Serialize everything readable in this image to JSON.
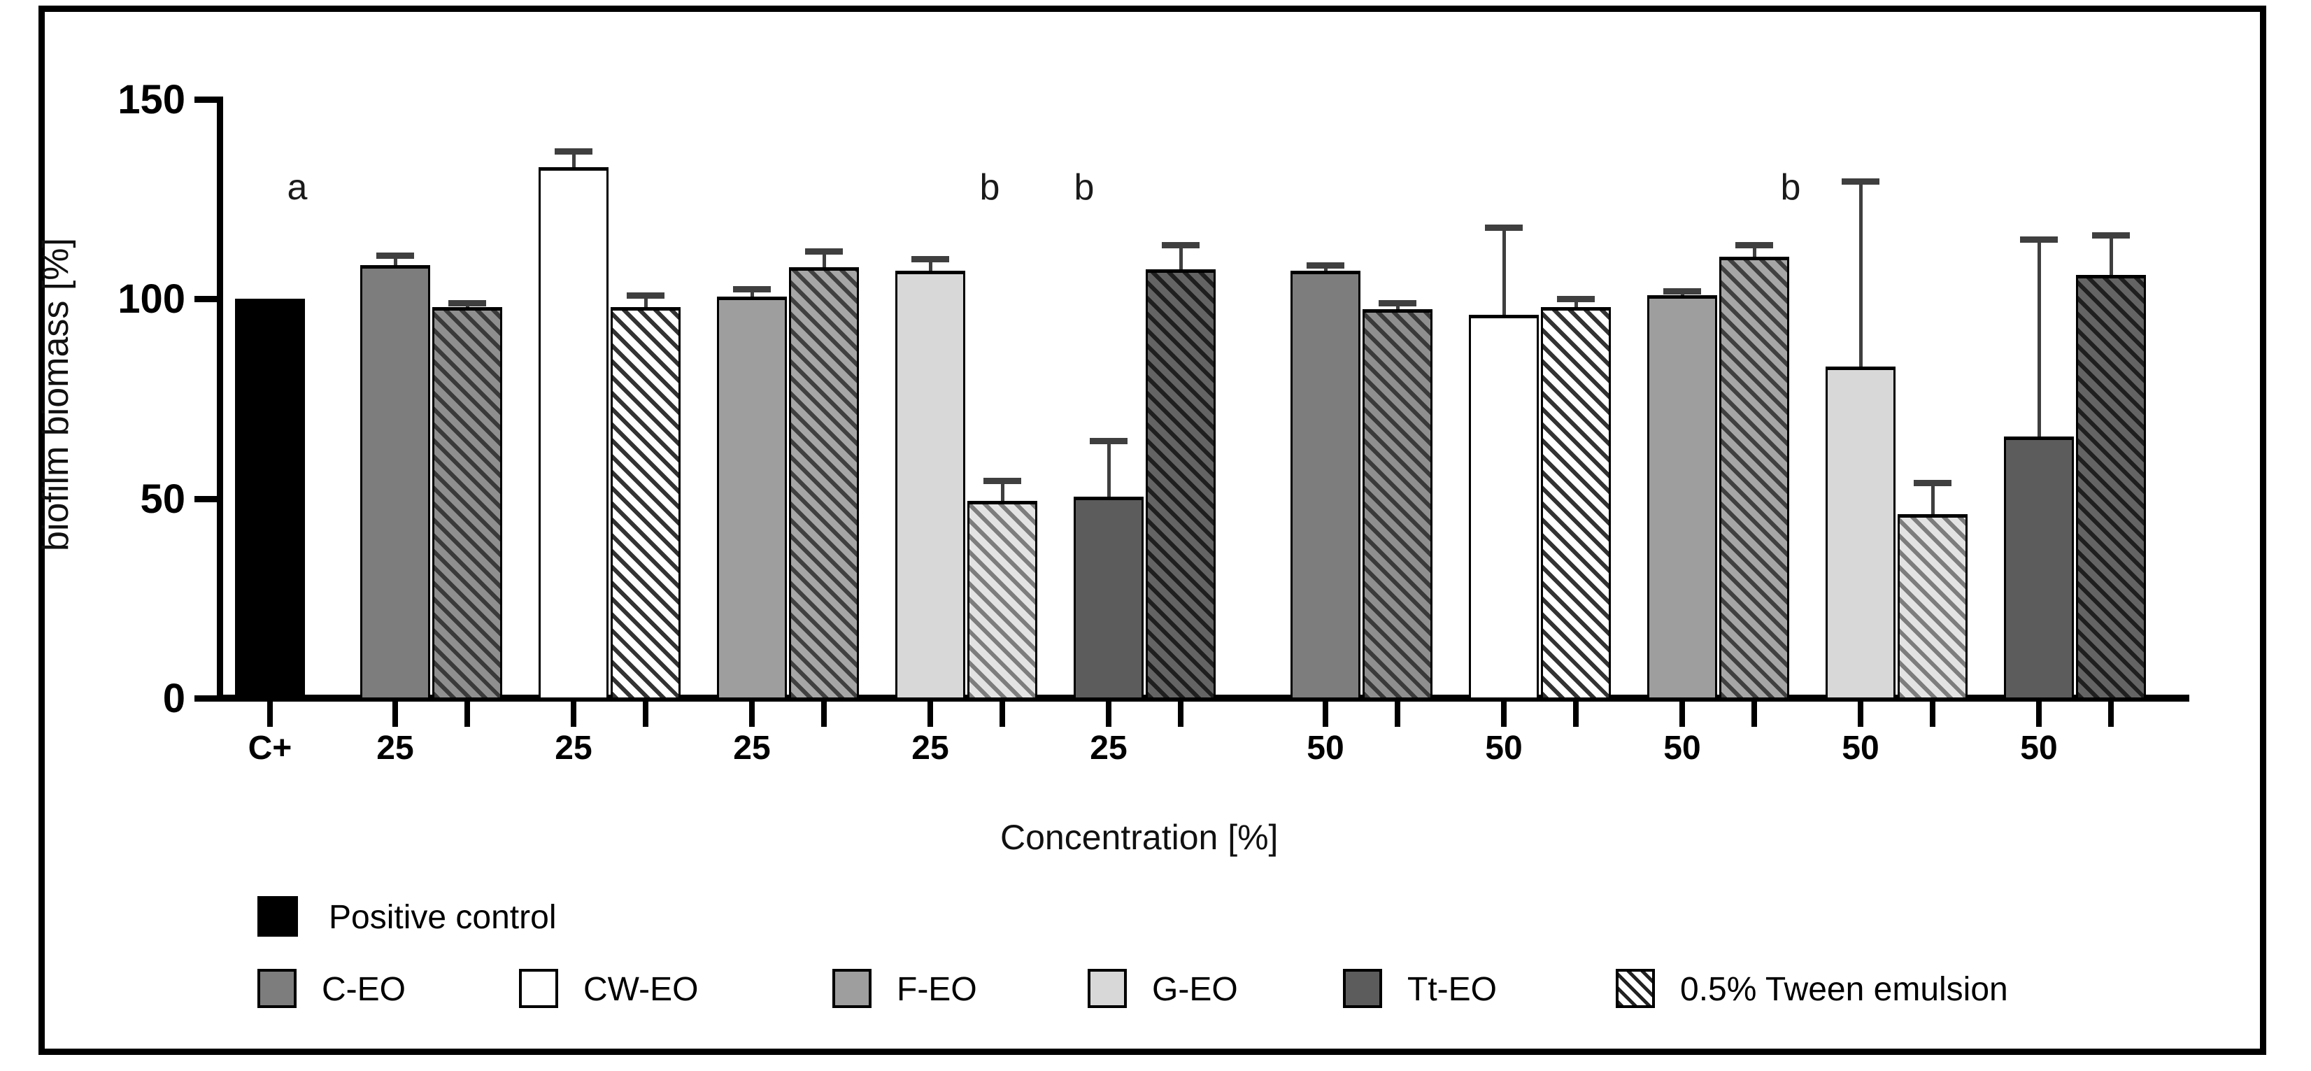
{
  "chart_data": {
    "type": "bar",
    "title": "",
    "xlabel": "Concentration [%]",
    "ylabel": "biofilm biomass [%]",
    "ylim": [
      0,
      150
    ],
    "yticks": [
      0,
      50,
      100,
      150
    ],
    "grid": false,
    "legend_position": "bottom-left",
    "groups": [
      {
        "tick": "C+",
        "bars": [
          {
            "series": "Positive control",
            "value": 100,
            "err": 0
          }
        ]
      },
      {
        "tick": "25",
        "bars": [
          {
            "series": "C-EO",
            "value": 108.5,
            "err": 2.5
          },
          {
            "series": "0.5% Tween emulsion",
            "partner": "C",
            "value": 98,
            "err": 1
          }
        ]
      },
      {
        "tick": "25",
        "bars": [
          {
            "series": "CW-EO",
            "value": 133,
            "err": 4
          },
          {
            "series": "0.5% Tween emulsion",
            "partner": "CW",
            "value": 98,
            "err": 3
          }
        ]
      },
      {
        "tick": "25",
        "bars": [
          {
            "series": "F-EO",
            "value": 100.5,
            "err": 2
          },
          {
            "series": "0.5% Tween emulsion",
            "partner": "F",
            "value": 108,
            "err": 4
          }
        ]
      },
      {
        "tick": "25",
        "bars": [
          {
            "series": "G-EO",
            "value": 107,
            "err": 3
          },
          {
            "series": "0.5% Tween emulsion",
            "partner": "G",
            "value": 49.5,
            "err": 5
          }
        ]
      },
      {
        "tick": "25",
        "bars": [
          {
            "series": "Tt-EO",
            "value": 50.5,
            "err": 14
          },
          {
            "series": "0.5% Tween emulsion",
            "partner": "Tt",
            "value": 107.5,
            "err": 6
          }
        ]
      },
      {
        "tick": "50",
        "bars": [
          {
            "series": "C-EO",
            "value": 107,
            "err": 1.5
          },
          {
            "series": "0.5% Tween emulsion",
            "partner": "C",
            "value": 97.5,
            "err": 1.5
          }
        ]
      },
      {
        "tick": "50",
        "bars": [
          {
            "series": "CW-EO",
            "value": 96,
            "err": 22
          },
          {
            "series": "0.5% Tween emulsion",
            "partner": "CW",
            "value": 98,
            "err": 2
          }
        ]
      },
      {
        "tick": "50",
        "bars": [
          {
            "series": "F-EO",
            "value": 101,
            "err": 1
          },
          {
            "series": "0.5% Tween emulsion",
            "partner": "F",
            "value": 110.5,
            "err": 3
          }
        ]
      },
      {
        "tick": "50",
        "bars": [
          {
            "series": "G-EO",
            "value": 83,
            "err": 46.5
          },
          {
            "series": "0.5% Tween emulsion",
            "partner": "G",
            "value": 46,
            "err": 8
          }
        ]
      },
      {
        "tick": "50",
        "bars": [
          {
            "series": "Tt-EO",
            "value": 65.5,
            "err": 49.5
          },
          {
            "series": "0.5% Tween emulsion",
            "partner": "Tt",
            "value": 106,
            "err": 10
          }
        ]
      }
    ],
    "annotations": [
      {
        "text": "a",
        "x": 425,
        "y": 268
      },
      {
        "text": "b",
        "x": 1415,
        "y": 268
      },
      {
        "text": "b",
        "x": 1550,
        "y": 268
      },
      {
        "text": "b",
        "x": 2560,
        "y": 268
      }
    ]
  },
  "colors": {
    "positive_control": "#000000",
    "C": "#7d7d7d",
    "CW": "#ffffff",
    "F": "#9e9e9e",
    "G": "#d8d8d8",
    "Tt": "#5c5c5c",
    "error_bar": "#3f3f3f",
    "axis": "#000000"
  },
  "legend": {
    "row1": [
      {
        "key": "positive_control",
        "label": "Positive control",
        "hatch": false
      }
    ],
    "row2": [
      {
        "key": "C",
        "label": "C-EO",
        "hatch": false
      },
      {
        "key": "CW",
        "label": "CW-EO",
        "hatch": false
      },
      {
        "key": "F",
        "label": "F-EO",
        "hatch": false
      },
      {
        "key": "G",
        "label": "G-EO",
        "hatch": false
      },
      {
        "key": "Tt",
        "label": "Tt-EO",
        "hatch": false
      },
      {
        "key": "tween",
        "label": "0.5% Tween emulsion",
        "hatch": true
      }
    ]
  }
}
